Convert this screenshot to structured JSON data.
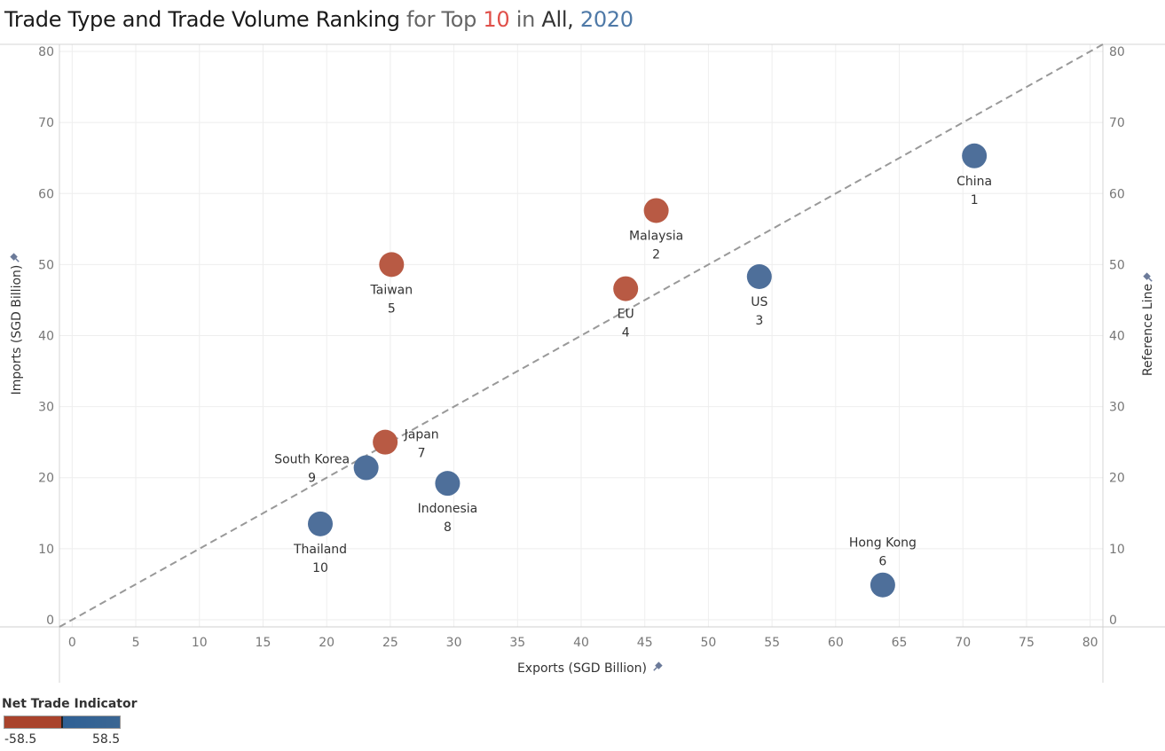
{
  "title": {
    "main": "Trade Type and Trade Volume Ranking",
    "for_text": "for Top",
    "top_n": "10",
    "in_text": "in",
    "scope": "All,",
    "year": "2020"
  },
  "colors": {
    "deficit": "#b85a44",
    "surplus": "#4e6f9a",
    "reference_line": "#999999",
    "grid": "#eeeeee",
    "title_red": "#e0504a",
    "title_blue": "#4e79a7"
  },
  "chart_data": {
    "type": "scatter",
    "xlabel": "Exports (SGD Billion)",
    "ylabel": "Imports (SGD Billion)",
    "y2label": "Reference Line",
    "xlim": [
      -1,
      81
    ],
    "ylim": [
      -1,
      81
    ],
    "xticks": [
      0,
      5,
      10,
      15,
      20,
      25,
      30,
      35,
      40,
      45,
      50,
      55,
      60,
      65,
      70,
      75,
      80
    ],
    "yticks": [
      0,
      10,
      20,
      30,
      40,
      50,
      60,
      70,
      80
    ],
    "grid": true,
    "reference_line": "y = x",
    "points": [
      {
        "name": "China",
        "rank": "1",
        "x": 70.9,
        "y": 65.3,
        "type": "surplus",
        "label_pos": "below"
      },
      {
        "name": "Malaysia",
        "rank": "2",
        "x": 45.9,
        "y": 57.6,
        "type": "deficit",
        "label_pos": "below"
      },
      {
        "name": "US",
        "rank": "3",
        "x": 54.0,
        "y": 48.3,
        "type": "surplus",
        "label_pos": "below"
      },
      {
        "name": "EU",
        "rank": "4",
        "x": 43.5,
        "y": 46.6,
        "type": "deficit",
        "label_pos": "below"
      },
      {
        "name": "Taiwan",
        "rank": "5",
        "x": 25.1,
        "y": 50.0,
        "type": "deficit",
        "label_pos": "below"
      },
      {
        "name": "Hong Kong",
        "rank": "6",
        "x": 63.7,
        "y": 4.9,
        "type": "surplus",
        "label_pos": "above"
      },
      {
        "name": "Japan",
        "rank": "7",
        "x": 24.6,
        "y": 25.0,
        "type": "deficit",
        "label_pos": "right"
      },
      {
        "name": "Indonesia",
        "rank": "8",
        "x": 29.5,
        "y": 19.2,
        "type": "surplus",
        "label_pos": "below"
      },
      {
        "name": "South Korea",
        "rank": "9",
        "x": 23.1,
        "y": 21.4,
        "type": "surplus",
        "label_pos": "left"
      },
      {
        "name": "Thailand",
        "rank": "10",
        "x": 19.5,
        "y": 13.5,
        "type": "surplus",
        "label_pos": "below"
      }
    ]
  },
  "legend": {
    "title": "Net Trade Indicator",
    "min": "-58.5",
    "max": "58.5"
  }
}
